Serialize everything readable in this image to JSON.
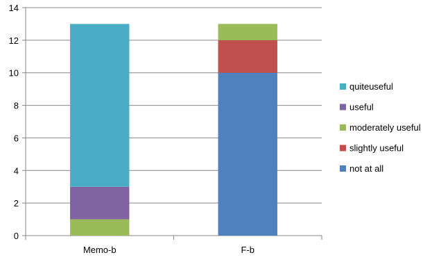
{
  "chart_data": {
    "type": "bar",
    "stacked": true,
    "categories": [
      "Memo-b",
      "F-b"
    ],
    "series": [
      {
        "name": "not at all",
        "color": "#4F81BD",
        "values": [
          0,
          10
        ]
      },
      {
        "name": "slightly useful",
        "color": "#C0504D",
        "values": [
          0,
          2
        ]
      },
      {
        "name": "moderately useful",
        "color": "#9BBB59",
        "values": [
          1,
          1
        ]
      },
      {
        "name": "useful",
        "color": "#8064A2",
        "values": [
          2,
          0
        ]
      },
      {
        "name": "quiteuseful",
        "color": "#4BACC6",
        "values": [
          10,
          0
        ]
      }
    ],
    "y_ticks": [
      0,
      2,
      4,
      6,
      8,
      10,
      12,
      14
    ],
    "ylim": [
      0,
      14
    ],
    "grid": true,
    "legend": {
      "placement": "right",
      "order": [
        "quiteuseful",
        "useful",
        "moderately useful",
        "slightly useful",
        "not at all"
      ]
    },
    "title": "",
    "xlabel": "",
    "ylabel": ""
  }
}
